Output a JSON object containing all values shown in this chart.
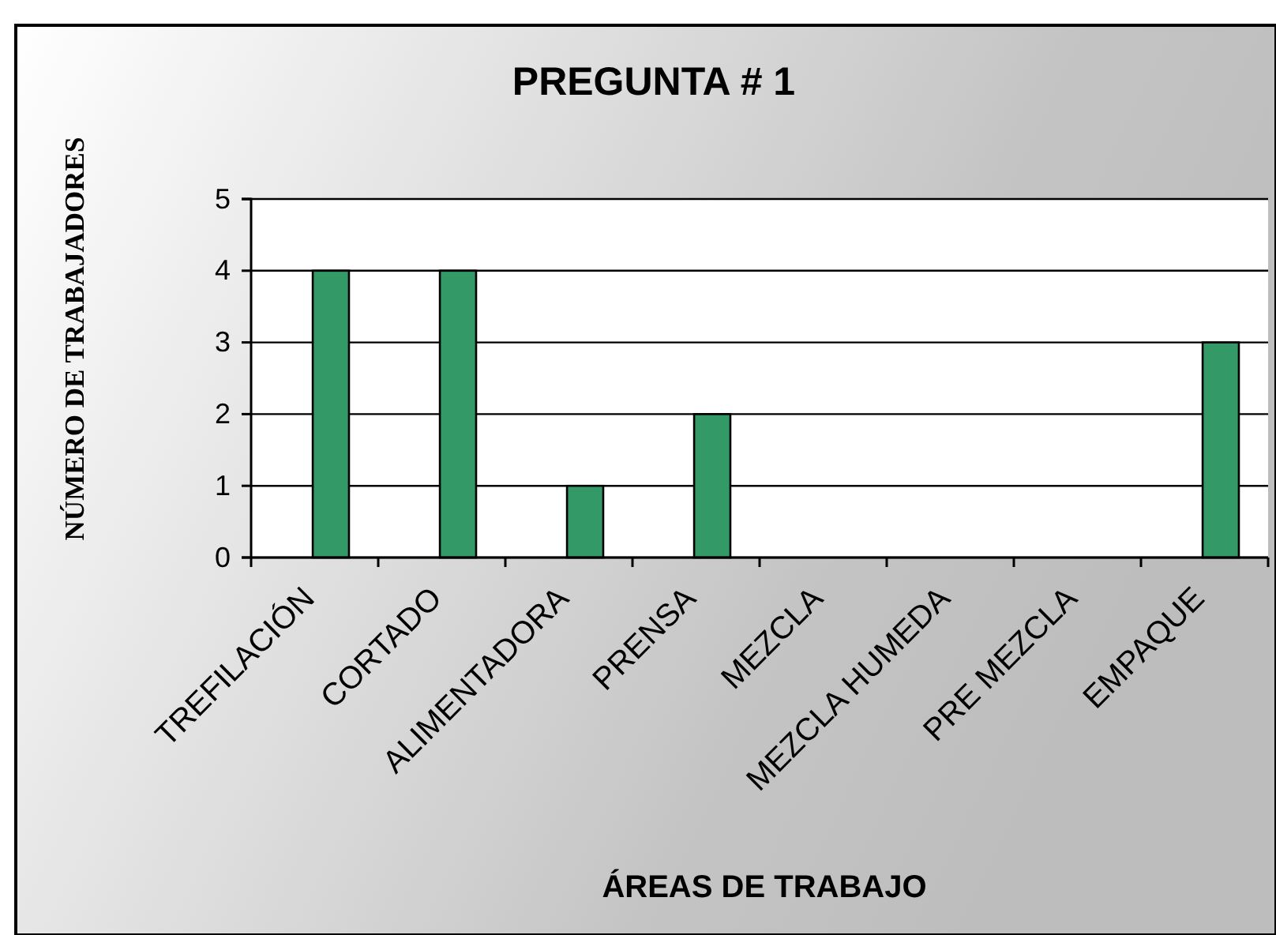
{
  "chart_data": {
    "type": "bar",
    "title": "PREGUNTA # 1",
    "xlabel": "ÁREAS DE TRABAJO",
    "ylabel": "NÚMERO DE TRABAJADORES",
    "categories": [
      "TREFILACIÓN",
      "CORTADO",
      "ALIMENTADORA",
      "PRENSA",
      "MEZCLA",
      "MEZCLA HUMEDA",
      "PRE MEZCLA",
      "EMPAQUE"
    ],
    "values": [
      4,
      4,
      1,
      2,
      0,
      0,
      0,
      3
    ],
    "color": "#339966",
    "ylim": [
      0,
      5
    ],
    "yticks": [
      0,
      1,
      2,
      3,
      4,
      5
    ],
    "grid": "y",
    "legend": false
  }
}
